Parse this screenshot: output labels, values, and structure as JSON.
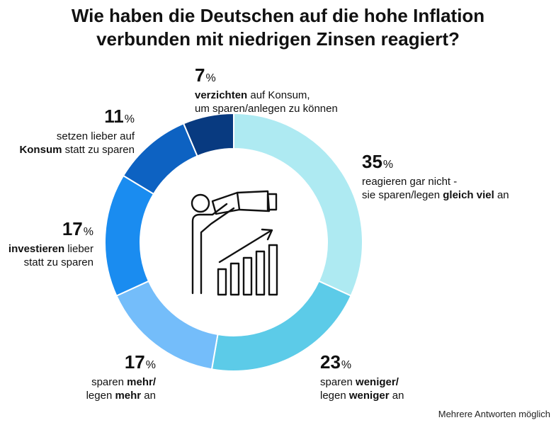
{
  "title": {
    "line1": "Wie haben die Deutschen auf die hohe Inflation",
    "line2": "verbunden mit niedrigen Zinsen reagiert?"
  },
  "chart_data": {
    "type": "pie",
    "variant": "donut",
    "unit": "%",
    "slices": [
      {
        "value": 35,
        "color": "#aeeaf2",
        "label_a": "reagieren gar nicht -",
        "label_b_plain1": "sie sparen/legen ",
        "label_b_bold": "gleich viel",
        "label_b_plain2": " an"
      },
      {
        "value": 23,
        "color": "#5ccbe8",
        "label_a_plain": "sparen ",
        "label_a_bold": "weniger/",
        "label_b_plain": "legen ",
        "label_b_bold": "weniger",
        "label_b_plain2": " an"
      },
      {
        "value": 17,
        "color": "#74bdfa",
        "label_a_plain": "sparen ",
        "label_a_bold": "mehr/",
        "label_b_plain": "legen ",
        "label_b_bold": "mehr",
        "label_b_plain2": " an"
      },
      {
        "value": 17,
        "color": "#1a8cf0",
        "label_a_bold": "investieren",
        "label_a_plain": " lieber",
        "label_b_plain": "statt zu sparen"
      },
      {
        "value": 11,
        "color": "#0d62c2",
        "label_a_plain": "setzen lieber auf",
        "label_b_bold": "Konsum",
        "label_b_plain": " statt zu sparen"
      },
      {
        "value": 7,
        "color": "#083a80",
        "label_a_bold": "verzichten",
        "label_a_plain": " auf Konsum,",
        "label_b_plain": "um sparen/anlegen zu können"
      }
    ]
  },
  "center_icon": "telescope-growth-chart-icon",
  "footnote": "Mehrere Antworten möglich"
}
